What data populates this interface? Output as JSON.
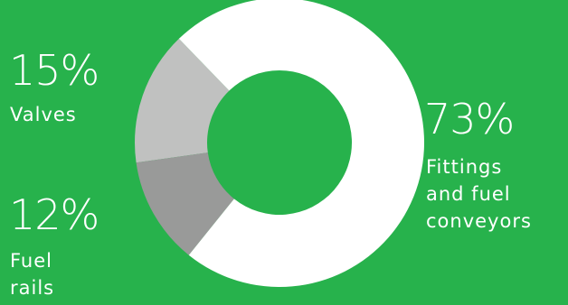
{
  "background_color": "#27b24c",
  "chart_data": {
    "type": "pie",
    "style": "donut",
    "title": "",
    "slices": [
      {
        "percent_text": "15%",
        "label": "Valves",
        "value": 15,
        "color": "#c0c1c0"
      },
      {
        "percent_text": "12%",
        "label": "Fuel\nrails",
        "value": 12,
        "color": "#999a99"
      },
      {
        "percent_text": "73%",
        "label": "Fittings\nand fuel\nconveyors",
        "value": 73,
        "color": "#ffffff"
      }
    ],
    "order_note_hidden": true
  }
}
